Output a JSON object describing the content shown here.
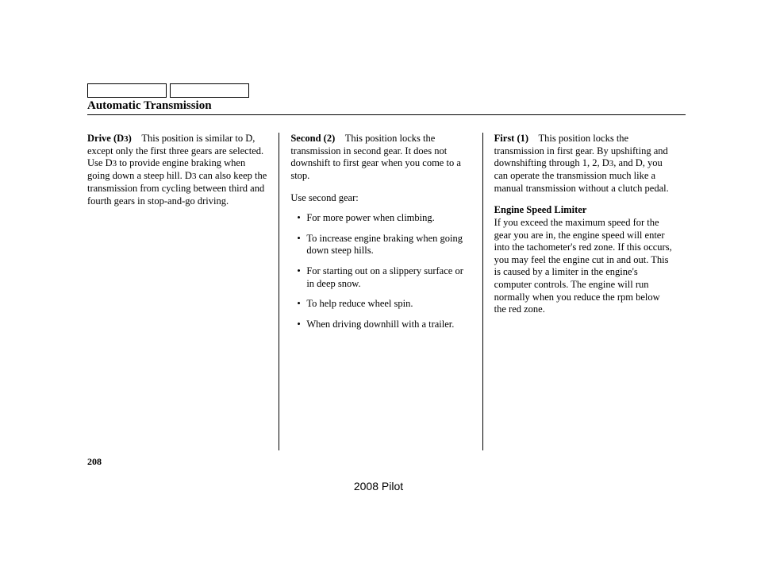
{
  "section_title": "Automatic Transmission",
  "page_number": "208",
  "footer": "2008  Pilot",
  "col1": {
    "h_drive": "Drive (D",
    "h_drive_sub": "3",
    "h_drive_close": ")",
    "p_drive_a": "This position is similar to D, except only the first three gears are selected. Use D",
    "p_drive_sub1": "3",
    "p_drive_b": " to provide engine braking when going down a steep hill. D",
    "p_drive_sub2": "3",
    "p_drive_c": " can also keep the transmission from cycling between third and fourth gears in stop-and-go driving."
  },
  "col2": {
    "h_second": "Second (2)",
    "p_second": "This position locks the transmission in second gear. It does not downshift to first gear when you come to a stop.",
    "p_use": "Use second gear:",
    "li1": "For more power when climbing.",
    "li2": "To increase engine braking when going down steep hills.",
    "li3": "For starting out on a slippery surface or in deep snow.",
    "li4": "To help reduce wheel spin.",
    "li5": "When driving downhill with a trailer."
  },
  "col3": {
    "h_first": "First (1)",
    "p_first_a": "This position locks the transmission in first gear. By upshifting and downshifting through 1, 2, D",
    "p_first_sub": "3",
    "p_first_b": ", and D, you can operate the transmission much like a manual transmission without a clutch pedal.",
    "h_esl": "Engine Speed Limiter",
    "p_esl": "If you exceed the maximum speed for the gear you are in, the engine speed will enter into the tachometer's red zone. If this occurs, you may feel the engine cut in and out. This is caused by a limiter in the engine's computer controls. The engine will run normally when you reduce the rpm below the red zone."
  }
}
